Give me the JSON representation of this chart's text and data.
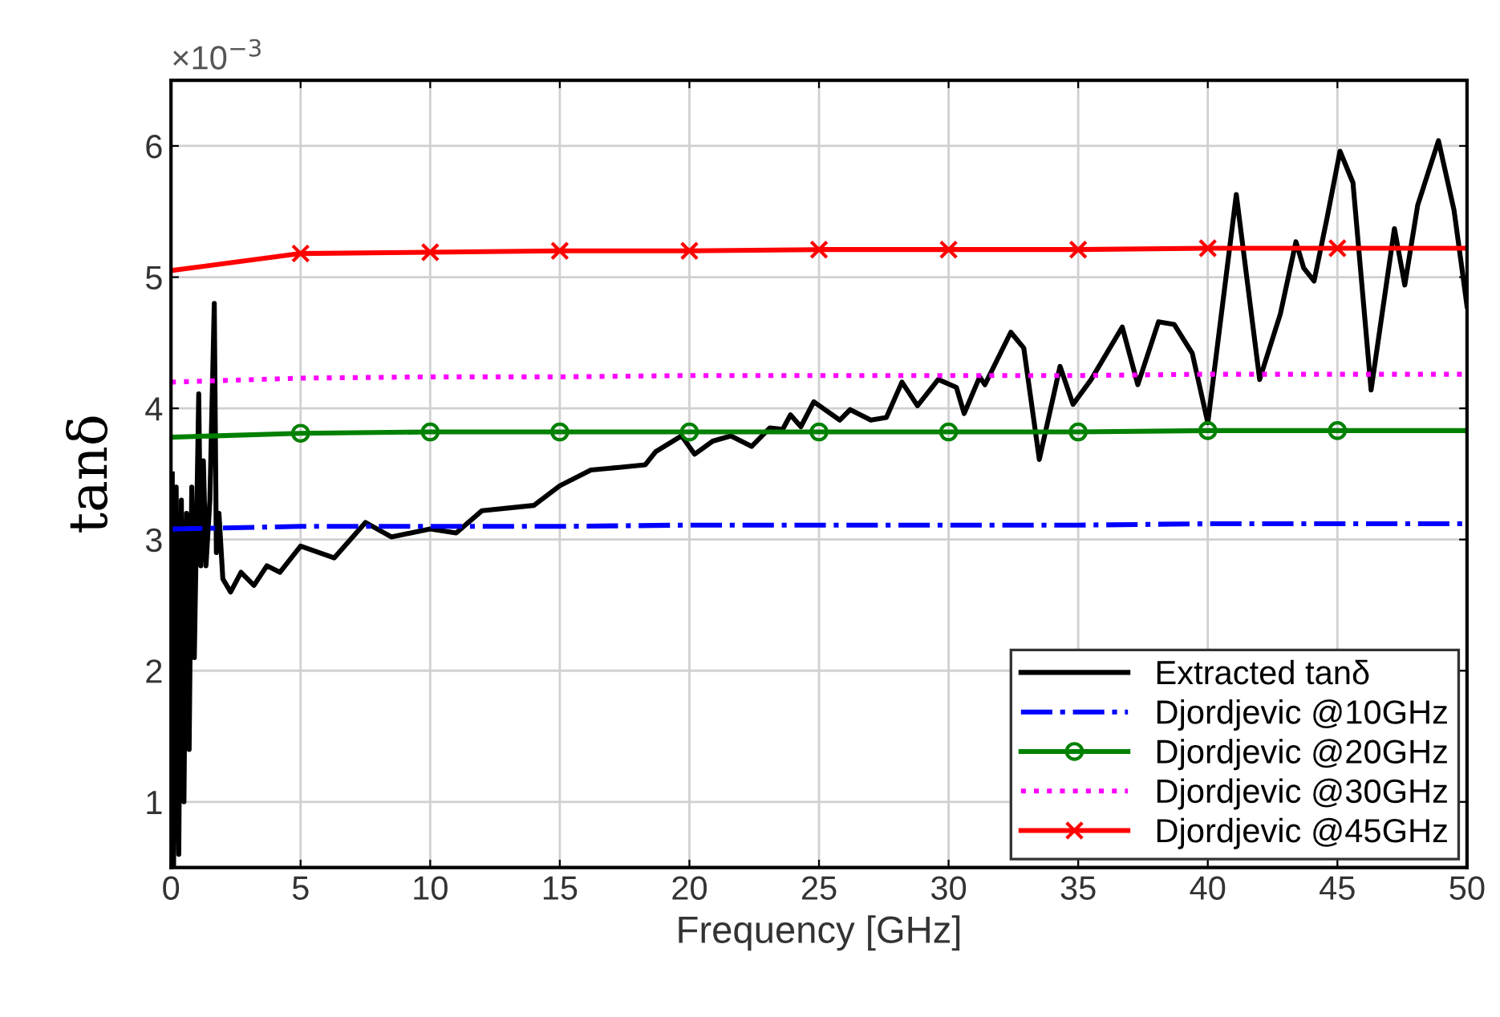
{
  "chart_data": {
    "type": "line",
    "xlabel": "Frequency [GHz]",
    "ylabel": "tanδ",
    "annotations": [
      "×10$^{−3}$"
    ],
    "xlim": [
      0,
      50
    ],
    "ylim": [
      0.5,
      6.5
    ],
    "xticks": [
      0,
      5,
      10,
      15,
      20,
      25,
      30,
      35,
      40,
      45,
      50
    ],
    "yticks": [
      1,
      2,
      3,
      4,
      5,
      6
    ],
    "grid": true,
    "legend": "bottom right",
    "series": [
      {
        "name": "Extracted tanδ",
        "color": "#000000",
        "line_style": "solid",
        "marker": "none",
        "x": [
          0.05,
          0.1,
          0.2,
          0.3,
          0.4,
          0.5,
          0.6,
          0.7,
          0.8,
          0.9,
          1.07,
          1.15,
          1.25,
          1.35,
          1.5,
          1.67,
          1.75,
          1.85,
          2.0,
          2.3,
          2.7,
          3.2,
          3.7,
          4.2,
          5.0,
          6.3,
          7.5,
          8.5,
          10.0,
          11.0,
          12.0,
          14.0,
          15.0,
          16.2,
          17.3,
          18.3,
          18.7,
          19.7,
          20.2,
          20.9,
          21.6,
          22.4,
          23.1,
          23.6,
          23.9,
          24.3,
          24.8,
          25.8,
          26.2,
          27.0,
          27.6,
          28.2,
          28.8,
          29.6,
          30.3,
          30.6,
          31.2,
          31.4,
          32.4,
          32.9,
          33.5,
          34.3,
          34.8,
          35.5,
          36.7,
          37.3,
          38.1,
          38.7,
          39.4,
          40.0,
          41.1,
          42.0,
          42.8,
          43.4,
          43.7,
          44.1,
          44.6,
          45.1,
          45.6,
          46.3,
          47.2,
          47.6,
          48.1,
          48.9,
          49.5,
          50.0
        ],
        "values": [
          3.5,
          0.5,
          3.4,
          0.6,
          3.3,
          1.0,
          3.2,
          1.4,
          3.4,
          2.1,
          4.11,
          2.8,
          3.6,
          2.8,
          3.3,
          4.8,
          2.9,
          3.2,
          2.7,
          2.6,
          2.75,
          2.65,
          2.8,
          2.75,
          2.95,
          2.86,
          3.13,
          3.02,
          3.08,
          3.05,
          3.22,
          3.26,
          3.41,
          3.53,
          3.55,
          3.57,
          3.67,
          3.79,
          3.65,
          3.75,
          3.79,
          3.71,
          3.85,
          3.84,
          3.95,
          3.86,
          4.05,
          3.91,
          3.99,
          3.91,
          3.93,
          4.2,
          4.02,
          4.22,
          4.16,
          3.96,
          4.24,
          4.18,
          4.58,
          4.46,
          3.61,
          4.32,
          4.03,
          4.22,
          4.62,
          4.18,
          4.66,
          4.64,
          4.42,
          3.89,
          5.63,
          4.22,
          4.72,
          5.27,
          5.07,
          4.97,
          5.45,
          5.96,
          5.72,
          4.14,
          5.37,
          4.94,
          5.55,
          6.04,
          5.51,
          4.78
        ]
      },
      {
        "name": "Djordjevic @10GHz",
        "color": "#0000ff",
        "line_style": "dashdot",
        "marker": "none",
        "x": [
          0,
          5,
          10,
          15,
          20,
          25,
          30,
          35,
          40,
          45,
          50
        ],
        "values": [
          3.08,
          3.1,
          3.1,
          3.1,
          3.11,
          3.11,
          3.11,
          3.11,
          3.12,
          3.12,
          3.12
        ]
      },
      {
        "name": "Djordjevic @20GHz",
        "color": "#008000",
        "line_style": "solid",
        "marker": "circle",
        "x": [
          0,
          5,
          10,
          15,
          20,
          25,
          30,
          35,
          40,
          45,
          50
        ],
        "values": [
          3.78,
          3.81,
          3.82,
          3.82,
          3.82,
          3.82,
          3.82,
          3.82,
          3.83,
          3.83,
          3.83
        ]
      },
      {
        "name": "Djordjevic @30GHz",
        "color": "#ff00ff",
        "line_style": "dotted",
        "marker": "none",
        "x": [
          0,
          5,
          10,
          15,
          20,
          25,
          30,
          35,
          40,
          45,
          50
        ],
        "values": [
          4.2,
          4.23,
          4.24,
          4.24,
          4.25,
          4.25,
          4.25,
          4.25,
          4.26,
          4.26,
          4.26
        ]
      },
      {
        "name": "Djordjevic @45GHz",
        "color": "#ff0000",
        "line_style": "solid",
        "marker": "cross",
        "x": [
          0,
          5,
          10,
          15,
          20,
          25,
          30,
          35,
          40,
          45,
          50
        ],
        "values": [
          5.05,
          5.18,
          5.19,
          5.2,
          5.2,
          5.21,
          5.21,
          5.21,
          5.22,
          5.22,
          5.22
        ]
      }
    ]
  }
}
